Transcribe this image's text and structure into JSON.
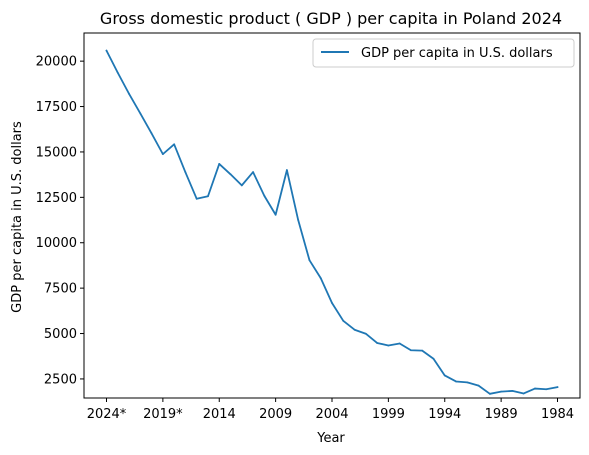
{
  "chart_data": {
    "type": "line",
    "title": "Gross domestic product ( GDP ) per capita in Poland 2024",
    "xlabel": "Year",
    "ylabel": "GDP per capita in U.S. dollars",
    "x": [
      "2024*",
      "2023*",
      "2022*",
      "2021*",
      "2020*",
      "2019*",
      "2018",
      "2017",
      "2016",
      "2015",
      "2014",
      "2013",
      "2012",
      "2011",
      "2010",
      "2009",
      "2008",
      "2007",
      "2006",
      "2005",
      "2004",
      "2003",
      "2002",
      "2001",
      "2000",
      "1999",
      "1998",
      "1997",
      "1996",
      "1995",
      "1994",
      "1993",
      "1992",
      "1991",
      "1990",
      "1989",
      "1988",
      "1987",
      "1986",
      "1985",
      "1984"
    ],
    "xticks": [
      "2024*",
      "2019*",
      "2014",
      "2009",
      "2004",
      "1999",
      "1994",
      "1989",
      "1984"
    ],
    "yticks": [
      2500,
      5000,
      7500,
      10000,
      12500,
      15000,
      17500,
      20000
    ],
    "ylim": [
      1450,
      21550
    ],
    "grid": false,
    "legend_position": "top-right",
    "colors": {
      "line": "#1f77b4"
    },
    "series": [
      {
        "name": "GDP per capita in U.S. dollars",
        "values": [
          20580,
          19360,
          18200,
          17120,
          16020,
          14880,
          15420,
          13880,
          12420,
          12560,
          14340,
          13770,
          13160,
          13890,
          12580,
          11540,
          14000,
          11250,
          9040,
          8050,
          6680,
          5700,
          5210,
          4990,
          4480,
          4340,
          4450,
          4080,
          4060,
          3610,
          2690,
          2360,
          2310,
          2130,
          1680,
          1800,
          1840,
          1700,
          1970,
          1930,
          2050
        ]
      }
    ]
  }
}
